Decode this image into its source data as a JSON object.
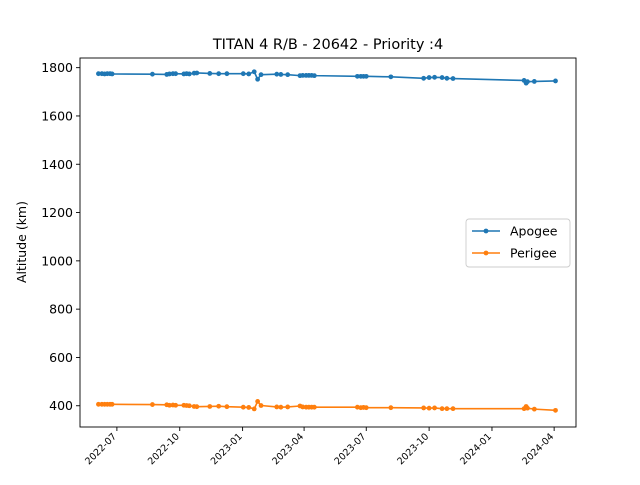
{
  "chart_data": {
    "type": "line",
    "title": "TITAN 4 R/B - 20642 - Priority :4",
    "xlabel": "",
    "ylabel": "Altitude (km)",
    "ylim": [
      312,
      1840
    ],
    "xlim": [
      "2022-05-08",
      "2024-05-03"
    ],
    "x_ticks": [
      "2022-07",
      "2022-10",
      "2023-01",
      "2023-04",
      "2023-07",
      "2023-10",
      "2024-01",
      "2024-04"
    ],
    "y_ticks": [
      400,
      600,
      800,
      1000,
      1200,
      1400,
      1600,
      1800
    ],
    "grid": false,
    "legend_position": "center-right",
    "series": [
      {
        "name": "Apogee",
        "color": "#1f77b4",
        "points": [
          [
            "2022-06-04",
            1775
          ],
          [
            "2022-06-09",
            1775
          ],
          [
            "2022-06-13",
            1774
          ],
          [
            "2022-06-17",
            1775
          ],
          [
            "2022-06-21",
            1775
          ],
          [
            "2022-06-24",
            1774
          ],
          [
            "2022-08-22",
            1773
          ],
          [
            "2022-09-12",
            1772
          ],
          [
            "2022-09-16",
            1774
          ],
          [
            "2022-09-21",
            1775
          ],
          [
            "2022-09-25",
            1775
          ],
          [
            "2022-10-07",
            1774
          ],
          [
            "2022-10-11",
            1775
          ],
          [
            "2022-10-15",
            1774
          ],
          [
            "2022-10-22",
            1777
          ],
          [
            "2022-10-26",
            1778
          ],
          [
            "2022-11-14",
            1776
          ],
          [
            "2022-11-27",
            1775
          ],
          [
            "2022-12-09",
            1775
          ],
          [
            "2023-01-02",
            1775
          ],
          [
            "2023-01-10",
            1774
          ],
          [
            "2023-01-18",
            1783
          ],
          [
            "2023-01-23",
            1752
          ],
          [
            "2023-01-28",
            1771
          ],
          [
            "2023-02-20",
            1773
          ],
          [
            "2023-02-26",
            1772
          ],
          [
            "2023-03-08",
            1771
          ],
          [
            "2023-03-26",
            1767
          ],
          [
            "2023-03-30",
            1768
          ],
          [
            "2023-04-04",
            1768
          ],
          [
            "2023-04-08",
            1768
          ],
          [
            "2023-04-12",
            1768
          ],
          [
            "2023-04-16",
            1767
          ],
          [
            "2023-06-18",
            1764
          ],
          [
            "2023-06-23",
            1764
          ],
          [
            "2023-06-27",
            1764
          ],
          [
            "2023-07-01",
            1764
          ],
          [
            "2023-08-06",
            1762
          ],
          [
            "2023-09-23",
            1756
          ],
          [
            "2023-10-01",
            1759
          ],
          [
            "2023-10-09",
            1760
          ],
          [
            "2023-10-20",
            1759
          ],
          [
            "2023-10-27",
            1756
          ],
          [
            "2023-11-05",
            1755
          ],
          [
            "2024-02-17",
            1747
          ],
          [
            "2024-02-20",
            1736
          ],
          [
            "2024-02-22",
            1742
          ],
          [
            "2024-03-03",
            1743
          ],
          [
            "2024-04-03",
            1745
          ]
        ]
      },
      {
        "name": "Perigee",
        "color": "#ff7f0e",
        "points": [
          [
            "2022-06-04",
            406
          ],
          [
            "2022-06-09",
            406
          ],
          [
            "2022-06-13",
            406
          ],
          [
            "2022-06-17",
            406
          ],
          [
            "2022-06-21",
            406
          ],
          [
            "2022-06-24",
            406
          ],
          [
            "2022-08-22",
            405
          ],
          [
            "2022-09-12",
            404
          ],
          [
            "2022-09-16",
            402
          ],
          [
            "2022-09-21",
            403
          ],
          [
            "2022-09-25",
            402
          ],
          [
            "2022-10-07",
            402
          ],
          [
            "2022-10-11",
            401
          ],
          [
            "2022-10-15",
            400
          ],
          [
            "2022-10-22",
            397
          ],
          [
            "2022-10-26",
            396
          ],
          [
            "2022-11-14",
            397
          ],
          [
            "2022-11-27",
            398
          ],
          [
            "2022-12-09",
            396
          ],
          [
            "2023-01-02",
            394
          ],
          [
            "2023-01-10",
            393
          ],
          [
            "2023-01-18",
            387
          ],
          [
            "2023-01-23",
            418
          ],
          [
            "2023-01-28",
            401
          ],
          [
            "2023-02-20",
            395
          ],
          [
            "2023-02-26",
            394
          ],
          [
            "2023-03-08",
            395
          ],
          [
            "2023-03-26",
            399
          ],
          [
            "2023-03-30",
            395
          ],
          [
            "2023-04-04",
            394
          ],
          [
            "2023-04-08",
            394
          ],
          [
            "2023-04-12",
            394
          ],
          [
            "2023-04-16",
            394
          ],
          [
            "2023-06-18",
            394
          ],
          [
            "2023-06-23",
            392
          ],
          [
            "2023-06-27",
            393
          ],
          [
            "2023-07-01",
            392
          ],
          [
            "2023-08-06",
            392
          ],
          [
            "2023-09-23",
            391
          ],
          [
            "2023-10-01",
            390
          ],
          [
            "2023-10-09",
            391
          ],
          [
            "2023-10-20",
            388
          ],
          [
            "2023-10-27",
            388
          ],
          [
            "2023-11-05",
            388
          ],
          [
            "2024-02-17",
            388
          ],
          [
            "2024-02-20",
            397
          ],
          [
            "2024-02-22",
            390
          ],
          [
            "2024-03-03",
            386
          ],
          [
            "2024-04-03",
            381
          ]
        ]
      }
    ]
  }
}
